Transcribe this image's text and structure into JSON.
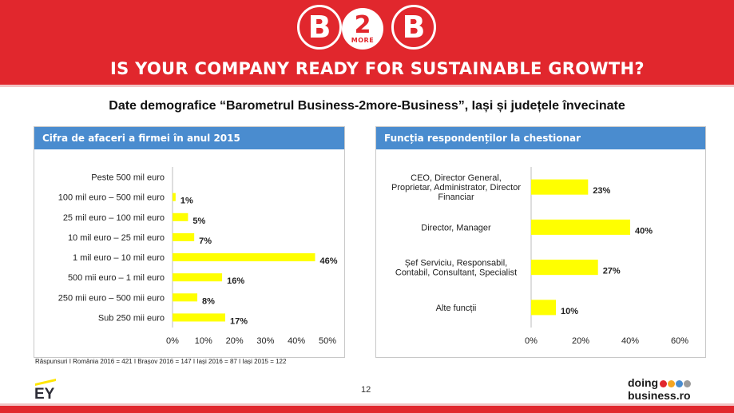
{
  "header": {
    "logo_left": "B",
    "logo_mid": "2",
    "logo_mid_small": "MORE",
    "logo_right": "B",
    "headline": "IS YOUR COMPANY READY FOR SUSTAINABLE GROWTH?",
    "color_primary": "#e1272d"
  },
  "subtitle": "Date demografice “Barometrul Business-2more-Business”, Iași și județele învecinate",
  "footnote": "Răspunsuri I România 2016 = 421 I Brașov 2016 = 147 I Iași 2016 = 87 I Iași 2015 = 122",
  "page_number": "12",
  "footer": {
    "ey_logo_text": "EY",
    "db_line1": "doing",
    "db_line2": "business.ro",
    "db_dot_colors": [
      "#e1272d",
      "#f5a623",
      "#4a8ccf",
      "#9b9b9b"
    ]
  },
  "chart_data": [
    {
      "type": "bar",
      "orientation": "horizontal",
      "title": "Cifra de afaceri a firmei în anul 2015",
      "categories": [
        "Peste 500 mil euro",
        "100 mil euro – 500 mil euro",
        "25 mil euro – 100 mil euro",
        "10 mil euro – 25 mil euro",
        "1 mil euro – 10 mil euro",
        "500 mii euro – 1 mil euro",
        "250 mii euro – 500 mii euro",
        "Sub 250 mii euro"
      ],
      "values": [
        0,
        1,
        5,
        7,
        46,
        16,
        8,
        17
      ],
      "value_labels": [
        "",
        "1%",
        "5%",
        "7%",
        "46%",
        "16%",
        "8%",
        "17%"
      ],
      "xlim": [
        0,
        50
      ],
      "ticks": [
        0,
        10,
        20,
        30,
        40,
        50
      ],
      "tick_labels": [
        "0%",
        "10%",
        "20%",
        "30%",
        "40%",
        "50%"
      ],
      "bar_color": "#ffff00"
    },
    {
      "type": "bar",
      "orientation": "horizontal",
      "title": "Funcția respondenților la chestionar",
      "categories": [
        [
          "CEO, Director General,",
          "Proprietar, Administrator, Director",
          "Financiar"
        ],
        [
          "Director, Manager"
        ],
        [
          "Șef Serviciu, Responsabil,",
          "Contabil, Consultant, Specialist"
        ],
        [
          "Alte funcții"
        ]
      ],
      "values": [
        23,
        40,
        27,
        10
      ],
      "value_labels": [
        "23%",
        "40%",
        "27%",
        "10%"
      ],
      "xlim": [
        0,
        60
      ],
      "ticks": [
        0,
        20,
        40,
        60
      ],
      "tick_labels": [
        "0%",
        "20%",
        "40%",
        "60%"
      ],
      "bar_color": "#ffff00"
    }
  ]
}
